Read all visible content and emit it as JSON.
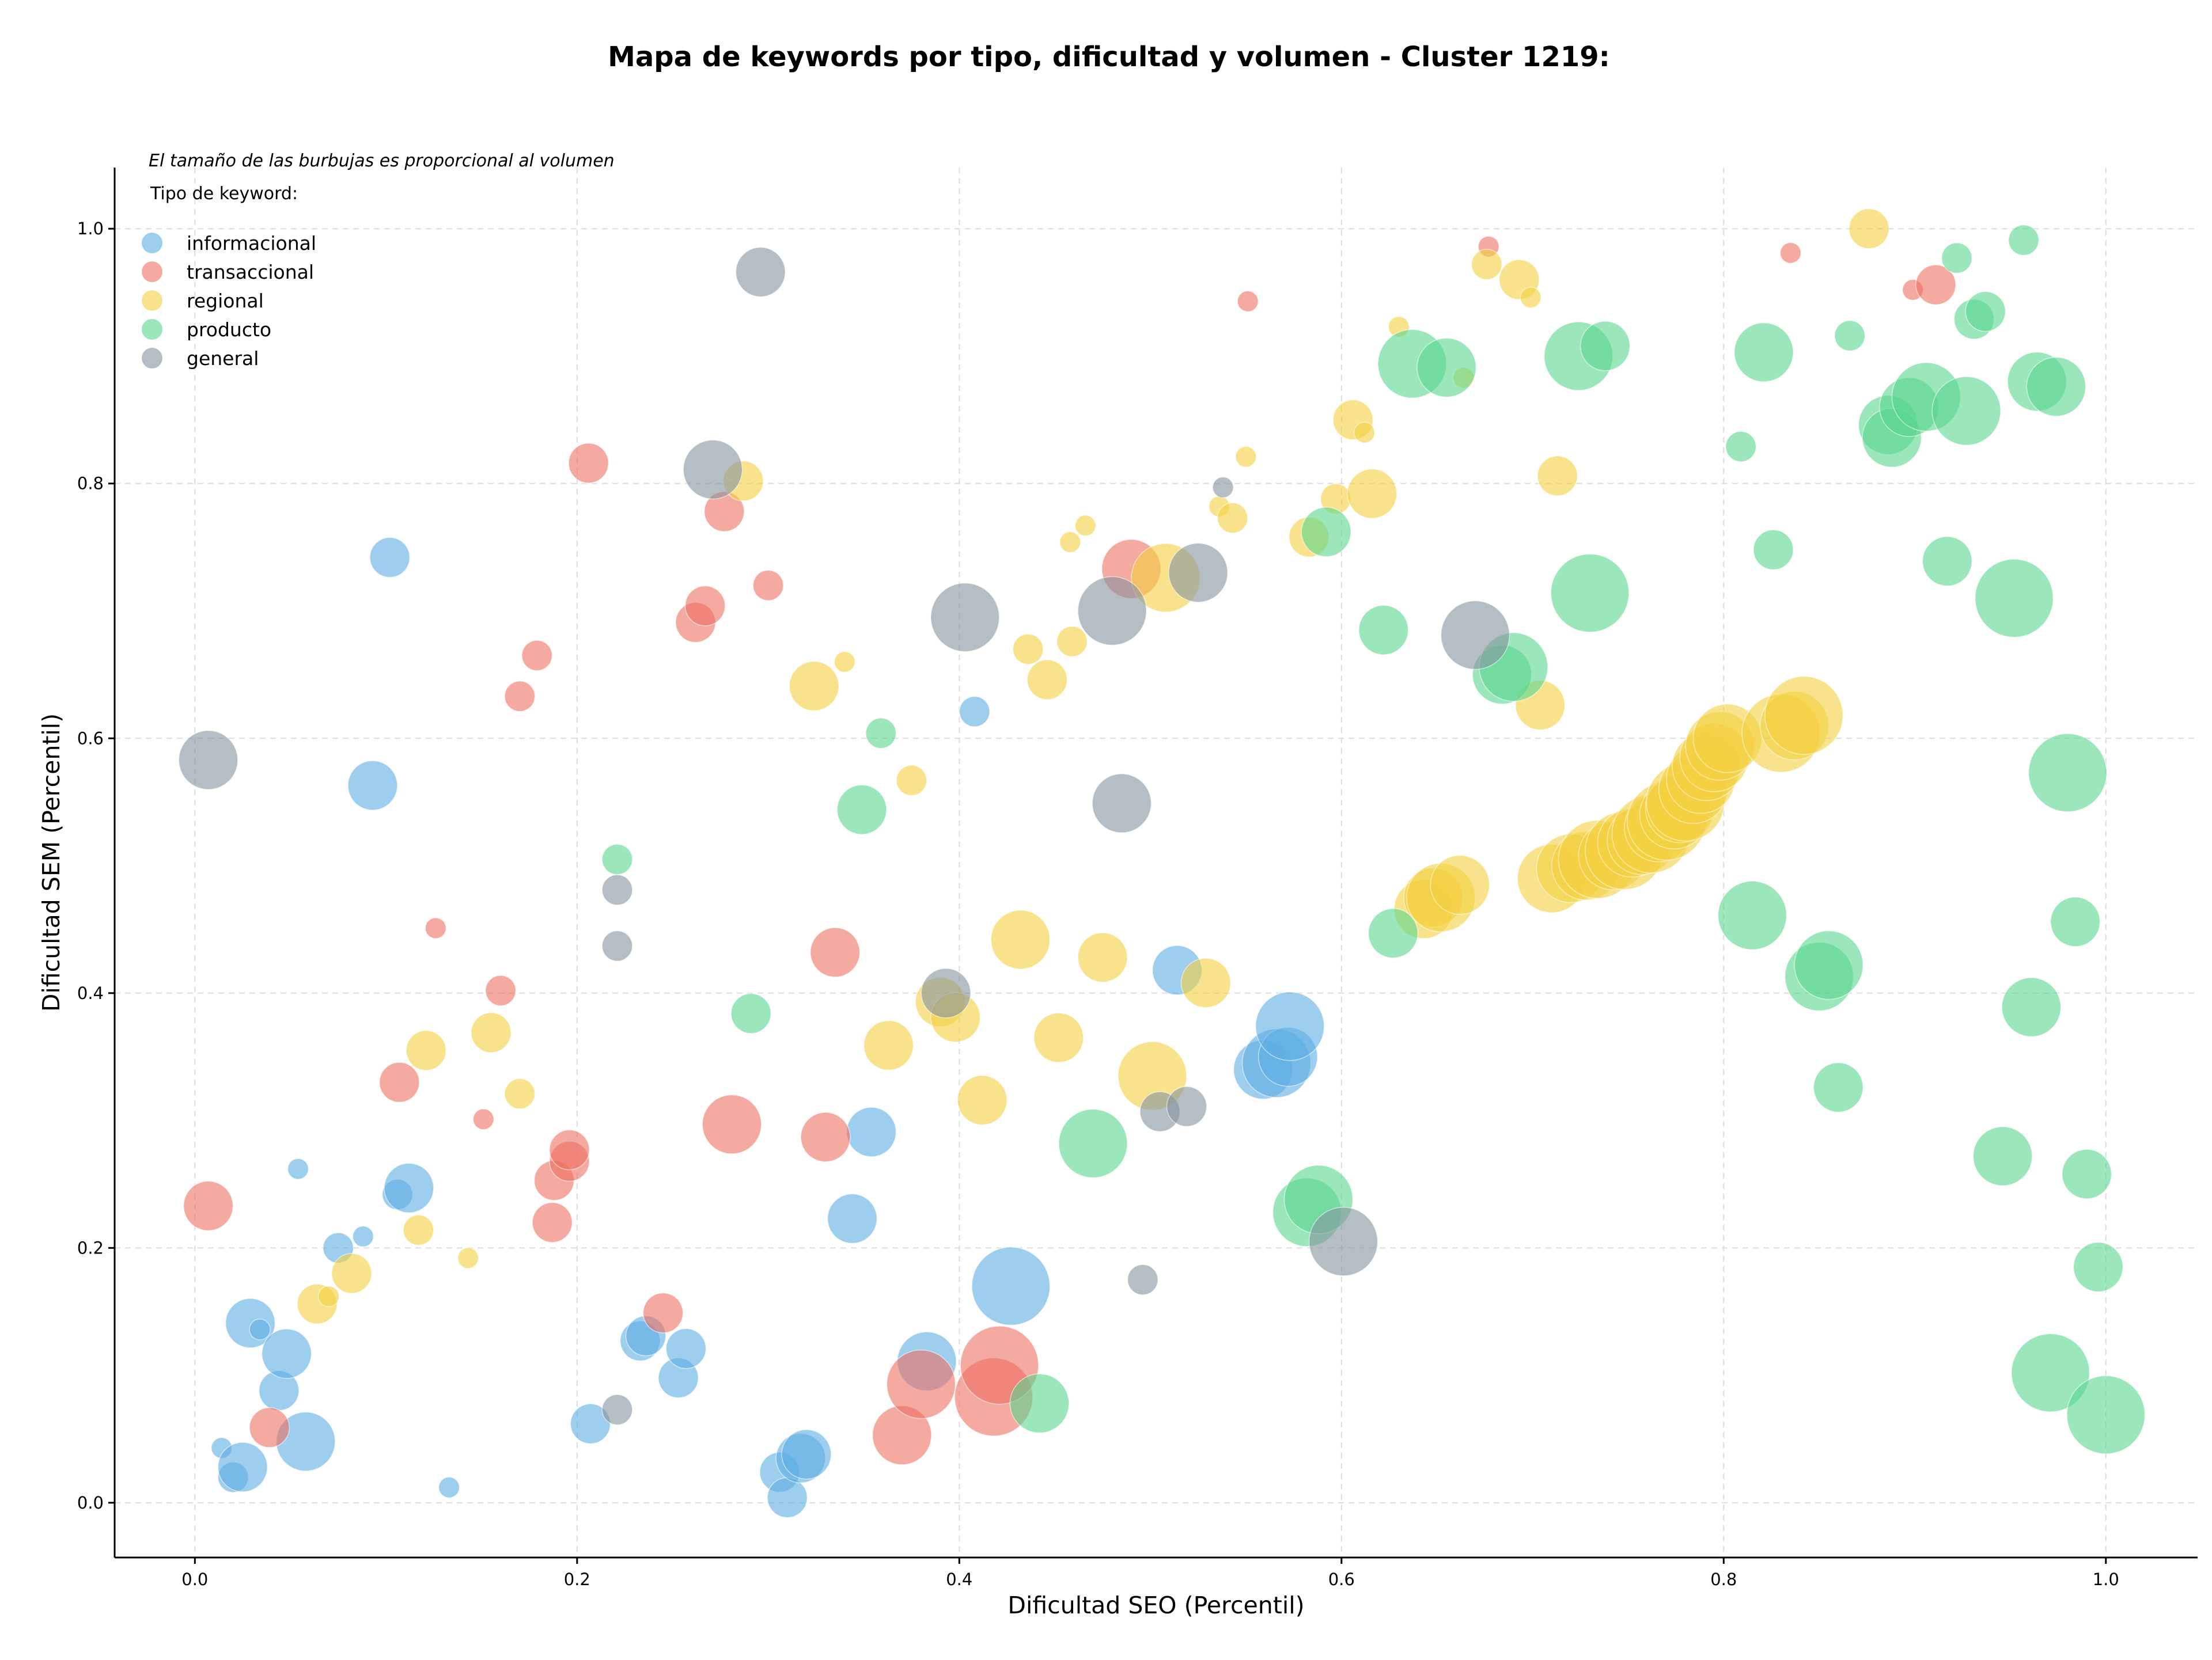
{
  "chart_data": {
    "type": "scatter",
    "title": "Mapa de keywords por tipo, dificultad y volumen - Cluster 1219:",
    "xlabel": "Dificultad SEO (Percentil)",
    "ylabel": "Dificultad SEM (Percentil)",
    "annotation": "El tamaño de las burbujas es proporcional al volumen",
    "legend_title": "Tipo de keyword:",
    "legend_position": "top-left",
    "xlim": [
      -0.042,
      1.048
    ],
    "ylim": [
      -0.043,
      1.048
    ],
    "x_ticks": [
      0.0,
      0.2,
      0.4,
      0.6,
      0.8,
      1.0
    ],
    "x_tick_labels": [
      "0.0",
      "0.2",
      "0.4",
      "0.6",
      "0.8",
      "1.0"
    ],
    "y_ticks": [
      0.0,
      0.2,
      0.4,
      0.6,
      0.8,
      1.0
    ],
    "y_tick_labels": [
      "0.0",
      "0.2",
      "0.4",
      "0.6",
      "0.8",
      "1.0"
    ],
    "grid": true,
    "series": [
      {
        "name": "informacional",
        "color": "#5dade2",
        "points": [
          [
            0.014,
            0.043,
            1
          ],
          [
            0.02,
            0.02,
            2
          ],
          [
            0.025,
            0.028,
            4
          ],
          [
            0.029,
            0.141,
            4
          ],
          [
            0.034,
            0.136,
            1
          ],
          [
            0.044,
            0.088,
            3
          ],
          [
            0.048,
            0.117,
            4
          ],
          [
            0.054,
            0.262,
            1
          ],
          [
            0.058,
            0.048,
            5
          ],
          [
            0.075,
            0.2,
            2
          ],
          [
            0.088,
            0.209,
            1
          ],
          [
            0.093,
            0.563,
            4
          ],
          [
            0.102,
            0.742,
            3
          ],
          [
            0.106,
            0.242,
            2
          ],
          [
            0.112,
            0.247,
            4
          ],
          [
            0.133,
            0.012,
            1
          ],
          [
            0.207,
            0.062,
            3
          ],
          [
            0.233,
            0.127,
            3
          ],
          [
            0.236,
            0.131,
            3
          ],
          [
            0.253,
            0.098,
            3
          ],
          [
            0.257,
            0.121,
            3
          ],
          [
            0.306,
            0.024,
            3
          ],
          [
            0.31,
            0.004,
            3
          ],
          [
            0.317,
            0.035,
            4
          ],
          [
            0.32,
            0.038,
            4
          ],
          [
            0.344,
            0.223,
            4
          ],
          [
            0.354,
            0.291,
            4
          ],
          [
            0.383,
            0.111,
            5
          ],
          [
            0.408,
            0.621,
            2
          ],
          [
            0.427,
            0.17,
            7
          ],
          [
            0.514,
            0.418,
            4
          ],
          [
            0.559,
            0.34,
            5
          ],
          [
            0.566,
            0.345,
            6
          ],
          [
            0.572,
            0.35,
            5
          ],
          [
            0.573,
            0.374,
            6
          ]
        ]
      },
      {
        "name": "transaccional",
        "color": "#ec7063",
        "points": [
          [
            0.007,
            0.233,
            4
          ],
          [
            0.039,
            0.059,
            3
          ],
          [
            0.107,
            0.33,
            3
          ],
          [
            0.126,
            0.451,
            1
          ],
          [
            0.151,
            0.301,
            1
          ],
          [
            0.16,
            0.402,
            2
          ],
          [
            0.17,
            0.633,
            2
          ],
          [
            0.179,
            0.665,
            2
          ],
          [
            0.187,
            0.22,
            3
          ],
          [
            0.188,
            0.253,
            3
          ],
          [
            0.196,
            0.268,
            3
          ],
          [
            0.196,
            0.277,
            3
          ],
          [
            0.206,
            0.816,
            3
          ],
          [
            0.245,
            0.149,
            3
          ],
          [
            0.262,
            0.691,
            3
          ],
          [
            0.267,
            0.704,
            3
          ],
          [
            0.277,
            0.778,
            3
          ],
          [
            0.281,
            0.297,
            5
          ],
          [
            0.3,
            0.72,
            2
          ],
          [
            0.33,
            0.287,
            4
          ],
          [
            0.335,
            0.432,
            4
          ],
          [
            0.37,
            0.053,
            5
          ],
          [
            0.38,
            0.093,
            6
          ],
          [
            0.418,
            0.083,
            7
          ],
          [
            0.421,
            0.108,
            7
          ],
          [
            0.49,
            0.733,
            5
          ],
          [
            0.551,
            0.943,
            1
          ],
          [
            0.677,
            0.986,
            1
          ],
          [
            0.835,
            0.981,
            1
          ],
          [
            0.899,
            0.952,
            1
          ],
          [
            0.911,
            0.956,
            3
          ]
        ]
      },
      {
        "name": "regional",
        "color": "#f4d03f",
        "points": [
          [
            0.064,
            0.156,
            3
          ],
          [
            0.07,
            0.162,
            1
          ],
          [
            0.082,
            0.18,
            3
          ],
          [
            0.117,
            0.214,
            2
          ],
          [
            0.121,
            0.355,
            3
          ],
          [
            0.143,
            0.192,
            1
          ],
          [
            0.155,
            0.369,
            3
          ],
          [
            0.17,
            0.321,
            2
          ],
          [
            0.287,
            0.802,
            3
          ],
          [
            0.324,
            0.641,
            4
          ],
          [
            0.34,
            0.66,
            1
          ],
          [
            0.363,
            0.359,
            4
          ],
          [
            0.375,
            0.567,
            2
          ],
          [
            0.39,
            0.393,
            4
          ],
          [
            0.398,
            0.381,
            4
          ],
          [
            0.412,
            0.316,
            4
          ],
          [
            0.432,
            0.442,
            5
          ],
          [
            0.436,
            0.67,
            2
          ],
          [
            0.446,
            0.646,
            3
          ],
          [
            0.452,
            0.365,
            4
          ],
          [
            0.458,
            0.754,
            1
          ],
          [
            0.459,
            0.676,
            2
          ],
          [
            0.466,
            0.767,
            1
          ],
          [
            0.475,
            0.428,
            4
          ],
          [
            0.501,
            0.335,
            6
          ],
          [
            0.508,
            0.726,
            6
          ],
          [
            0.529,
            0.408,
            4
          ],
          [
            0.536,
            0.782,
            1
          ],
          [
            0.543,
            0.773,
            2
          ],
          [
            0.55,
            0.821,
            1
          ],
          [
            0.583,
            0.758,
            3
          ],
          [
            0.597,
            0.788,
            2
          ],
          [
            0.606,
            0.85,
            3
          ],
          [
            0.612,
            0.84,
            1
          ],
          [
            0.616,
            0.792,
            4
          ],
          [
            0.63,
            0.923,
            1
          ],
          [
            0.643,
            0.466,
            5
          ],
          [
            0.648,
            0.475,
            5
          ],
          [
            0.652,
            0.475,
            6
          ],
          [
            0.662,
            0.485,
            5
          ],
          [
            0.664,
            0.883,
            1
          ],
          [
            0.676,
            0.972,
            2
          ],
          [
            0.693,
            0.96,
            3
          ],
          [
            0.699,
            0.946,
            1
          ],
          [
            0.704,
            0.626,
            4
          ],
          [
            0.71,
            0.49,
            6
          ],
          [
            0.713,
            0.806,
            3
          ],
          [
            0.72,
            0.498,
            6
          ],
          [
            0.728,
            0.5,
            6
          ],
          [
            0.734,
            0.505,
            7
          ],
          [
            0.742,
            0.508,
            6
          ],
          [
            0.748,
            0.512,
            7
          ],
          [
            0.752,
            0.518,
            6
          ],
          [
            0.757,
            0.52,
            6
          ],
          [
            0.762,
            0.525,
            7
          ],
          [
            0.766,
            0.53,
            6
          ],
          [
            0.77,
            0.535,
            7
          ],
          [
            0.774,
            0.54,
            6
          ],
          [
            0.777,
            0.545,
            6
          ],
          [
            0.78,
            0.55,
            7
          ],
          [
            0.784,
            0.56,
            6
          ],
          [
            0.788,
            0.568,
            6
          ],
          [
            0.791,
            0.578,
            6
          ],
          [
            0.795,
            0.585,
            6
          ],
          [
            0.798,
            0.594,
            6
          ],
          [
            0.802,
            0.6,
            6
          ],
          [
            0.83,
            0.604,
            7
          ],
          [
            0.837,
            0.61,
            6
          ],
          [
            0.842,
            0.618,
            7
          ],
          [
            0.876,
            1.0,
            3
          ]
        ]
      },
      {
        "name": "producto",
        "color": "#58d68d",
        "points": [
          [
            0.221,
            0.505,
            2
          ],
          [
            0.291,
            0.384,
            3
          ],
          [
            0.349,
            0.544,
            4
          ],
          [
            0.359,
            0.604,
            2
          ],
          [
            0.442,
            0.078,
            5
          ],
          [
            0.47,
            0.282,
            6
          ],
          [
            0.582,
            0.228,
            6
          ],
          [
            0.588,
            0.238,
            6
          ],
          [
            0.592,
            0.762,
            4
          ],
          [
            0.622,
            0.685,
            4
          ],
          [
            0.627,
            0.447,
            4
          ],
          [
            0.637,
            0.894,
            6
          ],
          [
            0.655,
            0.891,
            5
          ],
          [
            0.684,
            0.65,
            5
          ],
          [
            0.69,
            0.656,
            6
          ],
          [
            0.724,
            0.9,
            6
          ],
          [
            0.73,
            0.714,
            7
          ],
          [
            0.738,
            0.908,
            4
          ],
          [
            0.809,
            0.829,
            2
          ],
          [
            0.815,
            0.461,
            6
          ],
          [
            0.821,
            0.903,
            5
          ],
          [
            0.826,
            0.748,
            3
          ],
          [
            0.85,
            0.413,
            6
          ],
          [
            0.855,
            0.422,
            6
          ],
          [
            0.86,
            0.326,
            4
          ],
          [
            0.866,
            0.916,
            2
          ],
          [
            0.886,
            0.846,
            5
          ],
          [
            0.888,
            0.836,
            5
          ],
          [
            0.897,
            0.86,
            5
          ],
          [
            0.906,
            0.868,
            6
          ],
          [
            0.917,
            0.739,
            4
          ],
          [
            0.922,
            0.977,
            2
          ],
          [
            0.927,
            0.857,
            6
          ],
          [
            0.931,
            0.929,
            3
          ],
          [
            0.937,
            0.935,
            3
          ],
          [
            0.946,
            0.272,
            5
          ],
          [
            0.952,
            0.71,
            7
          ],
          [
            0.957,
            0.991,
            2
          ],
          [
            0.961,
            0.389,
            5
          ],
          [
            0.964,
            0.88,
            5
          ],
          [
            0.971,
            0.102,
            7
          ],
          [
            0.974,
            0.876,
            5
          ],
          [
            0.98,
            0.573,
            7
          ],
          [
            0.984,
            0.456,
            4
          ],
          [
            0.99,
            0.258,
            4
          ],
          [
            0.996,
            0.185,
            4
          ],
          [
            1.0,
            0.069,
            7
          ]
        ]
      },
      {
        "name": "general",
        "color": "#85929e",
        "points": [
          [
            0.007,
            0.583,
            5
          ],
          [
            0.221,
            0.437,
            2
          ],
          [
            0.221,
            0.481,
            2
          ],
          [
            0.221,
            0.073,
            2
          ],
          [
            0.271,
            0.811,
            5
          ],
          [
            0.296,
            0.966,
            4
          ],
          [
            0.393,
            0.4,
            4
          ],
          [
            0.403,
            0.695,
            6
          ],
          [
            0.48,
            0.7,
            6
          ],
          [
            0.485,
            0.549,
            5
          ],
          [
            0.496,
            0.175,
            2
          ],
          [
            0.505,
            0.307,
            3
          ],
          [
            0.519,
            0.311,
            3
          ],
          [
            0.525,
            0.73,
            5
          ],
          [
            0.538,
            0.797,
            1
          ],
          [
            0.601,
            0.205,
            6
          ],
          [
            0.67,
            0.681,
            6
          ]
        ]
      }
    ]
  }
}
